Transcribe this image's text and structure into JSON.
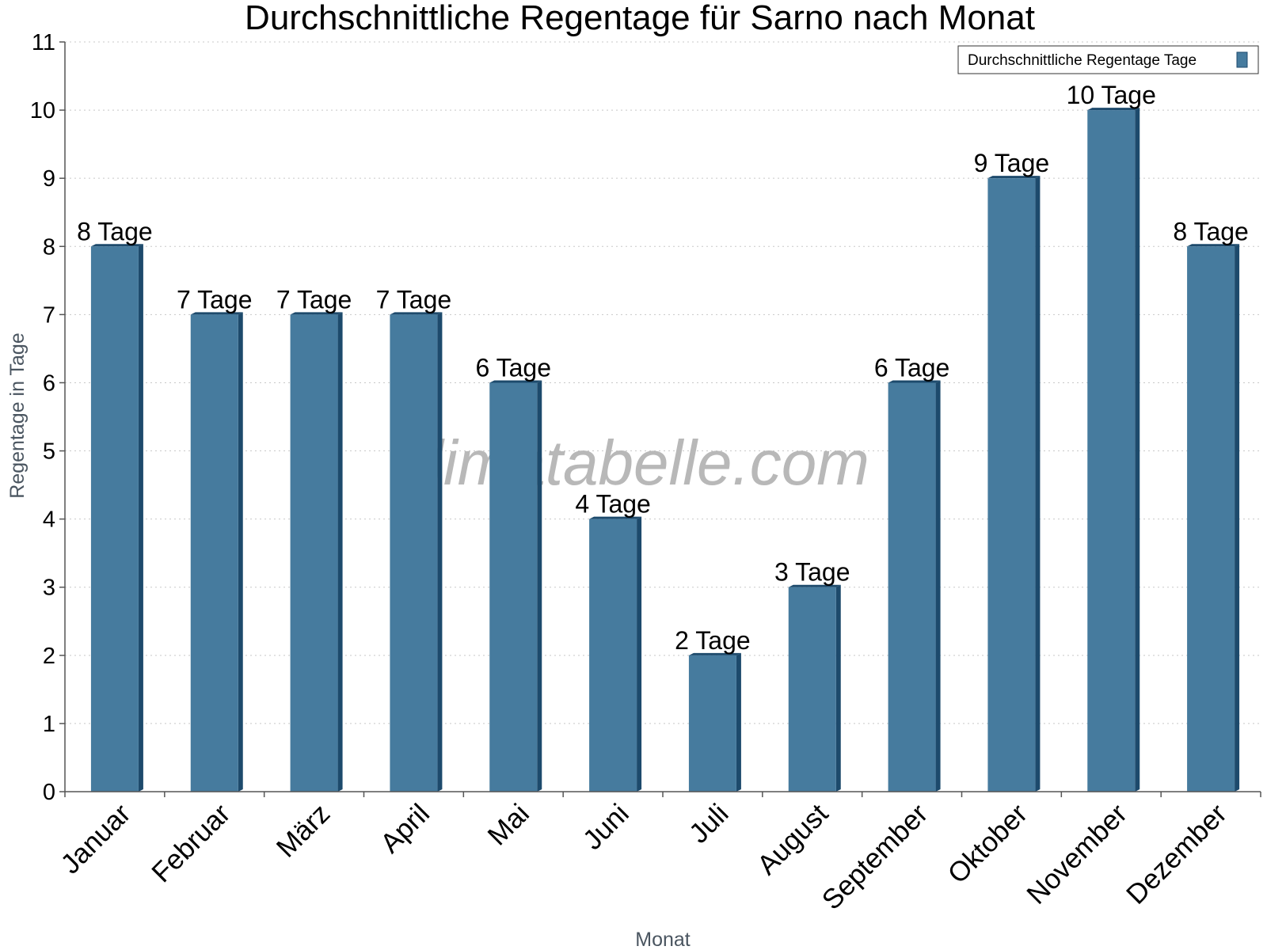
{
  "chart_data": {
    "type": "bar",
    "title": "Durchschnittliche Regentage für Sarno nach Monat",
    "xlabel": "Monat",
    "ylabel": "Regentage in Tage",
    "ylim": [
      0,
      11
    ],
    "yticks": [
      0,
      1,
      2,
      3,
      4,
      5,
      6,
      7,
      8,
      9,
      10,
      11
    ],
    "grid": true,
    "legend_position": "top-right",
    "categories": [
      "Januar",
      "Februar",
      "März",
      "April",
      "Mai",
      "Juni",
      "Juli",
      "August",
      "September",
      "Oktober",
      "November",
      "Dezember"
    ],
    "series": [
      {
        "name": "Durchschnittliche Regentage Tage",
        "values": [
          8,
          7,
          7,
          7,
          6,
          4,
          2,
          3,
          6,
          9,
          10,
          8
        ],
        "value_labels": [
          "8 Tage",
          "7 Tage",
          "7 Tage",
          "7 Tage",
          "6 Tage",
          "4 Tage",
          "2 Tage",
          "3 Tage",
          "6 Tage",
          "9 Tage",
          "10 Tage",
          "8 Tage"
        ],
        "color": "#467b9e",
        "side_color": "#1d4a6c"
      }
    ]
  },
  "watermark": "klimatabelle.com"
}
